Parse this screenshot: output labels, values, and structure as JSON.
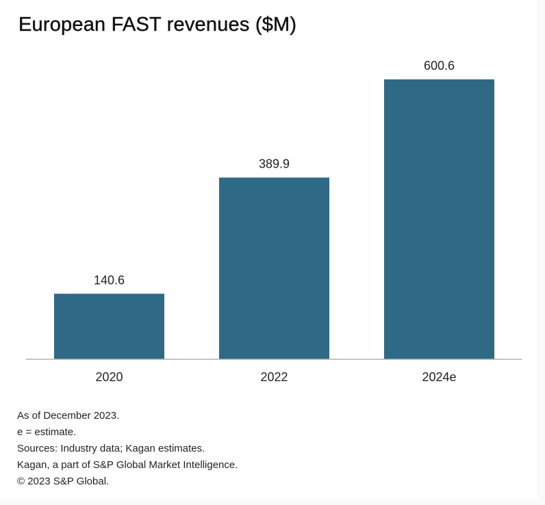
{
  "chart_data": {
    "type": "bar",
    "title": "European FAST revenues ($M)",
    "xlabel": "",
    "ylabel": "",
    "categories": [
      "2020",
      "2022",
      "2024e"
    ],
    "values": [
      140.6,
      389.9,
      600.6
    ],
    "data_labels": [
      "140.6",
      "389.9",
      "600.6"
    ],
    "ylim": [
      0,
      600.6
    ],
    "grid": false,
    "legend": "none",
    "bar_color": "#2e6a85",
    "axis_color": "#b0b0b0"
  },
  "footnotes": [
    "As of December 2023.",
    "e = estimate.",
    "Sources: Industry data; Kagan estimates.",
    "Kagan, a part of S&P Global Market Intelligence.",
    "© 2023 S&P Global."
  ]
}
